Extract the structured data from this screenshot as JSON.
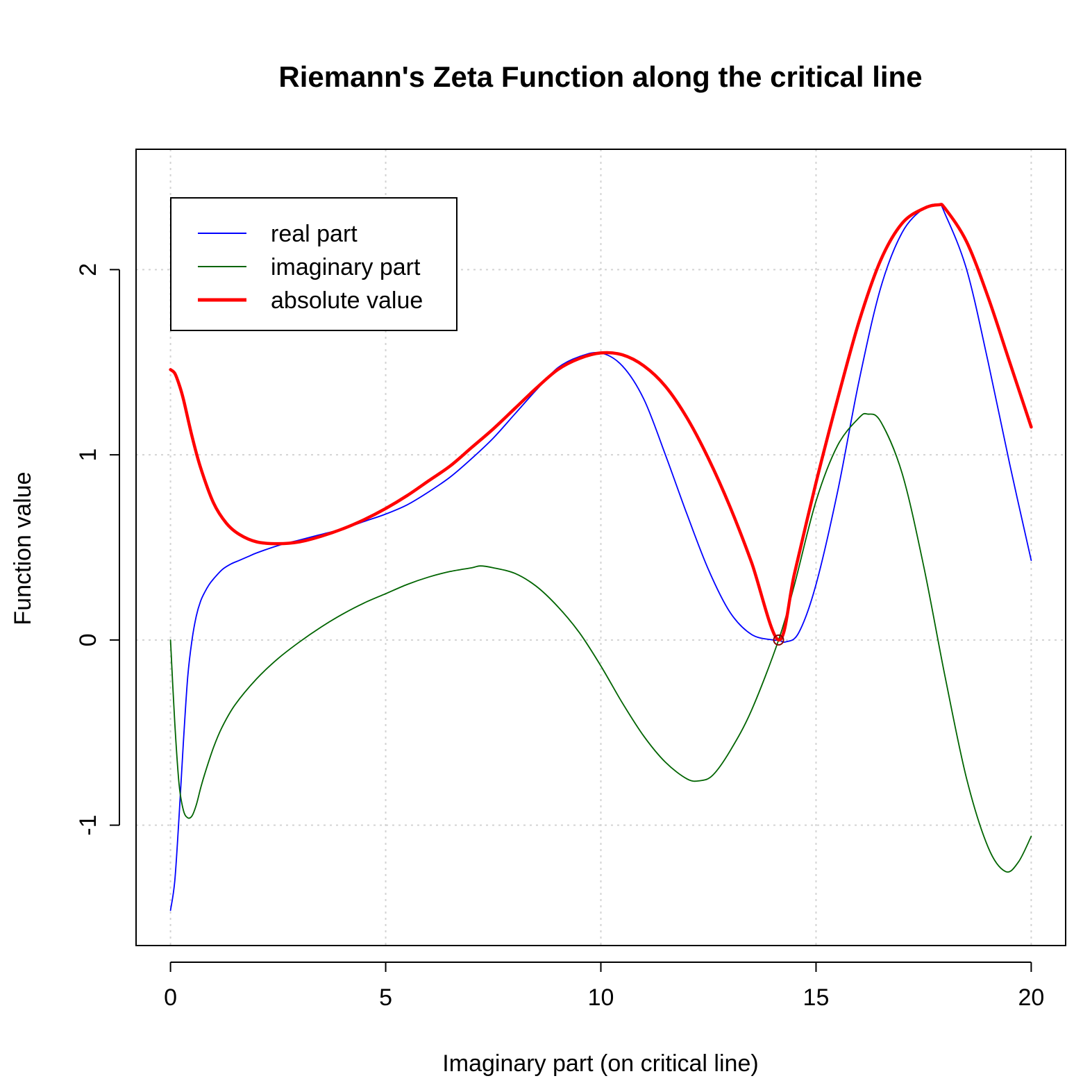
{
  "chart_data": {
    "type": "line",
    "title": "Riemann's Zeta Function along the critical line",
    "xlabel": "Imaginary part (on critical line)",
    "ylabel": "Function value",
    "xlim": [
      -0.8,
      20.8
    ],
    "ylim": [
      -1.65,
      2.65
    ],
    "xticks": [
      0,
      5,
      10,
      15,
      20
    ],
    "yticks": [
      -1,
      0,
      1,
      2
    ],
    "xtick_labels": [
      "0",
      "5",
      "10",
      "15",
      "20"
    ],
    "ytick_labels": [
      "-1",
      "0",
      "1",
      "2"
    ],
    "grid": true,
    "legend_position": "top-left",
    "legend": [
      "real part",
      "imaginary part",
      "absolute value"
    ],
    "marker_point": {
      "x": 14.13,
      "y": 0.0
    },
    "series": [
      {
        "name": "real part",
        "color": "#0000ff",
        "x": [
          0,
          0.1,
          0.2,
          0.3,
          0.4,
          0.5,
          0.6,
          0.7,
          0.8,
          0.9,
          1.0,
          1.2,
          1.4,
          1.6,
          1.8,
          2.0,
          2.5,
          3.0,
          3.5,
          4.0,
          4.5,
          5.0,
          5.5,
          6.0,
          6.5,
          7.0,
          7.5,
          8.0,
          8.5,
          9.0,
          9.5,
          10.0,
          10.5,
          11.0,
          11.5,
          12.0,
          12.5,
          13.0,
          13.5,
          14.0,
          14.13,
          14.3,
          14.6,
          15.0,
          15.5,
          16.0,
          16.5,
          17.0,
          17.5,
          17.85,
          18.0,
          18.5,
          19.0,
          19.5,
          20.0
        ],
        "y": [
          -1.46,
          -1.3,
          -0.95,
          -0.55,
          -0.2,
          0.0,
          0.13,
          0.21,
          0.26,
          0.3,
          0.33,
          0.38,
          0.41,
          0.43,
          0.45,
          0.47,
          0.51,
          0.54,
          0.57,
          0.6,
          0.64,
          0.68,
          0.73,
          0.8,
          0.88,
          0.98,
          1.09,
          1.22,
          1.35,
          1.47,
          1.53,
          1.55,
          1.48,
          1.3,
          1.0,
          0.68,
          0.38,
          0.15,
          0.03,
          0.0,
          0.0,
          -0.01,
          0.04,
          0.3,
          0.8,
          1.4,
          1.9,
          2.2,
          2.33,
          2.35,
          2.3,
          2.0,
          1.5,
          0.95,
          0.43
        ]
      },
      {
        "name": "imaginary part",
        "color": "#006400",
        "x": [
          0,
          0.1,
          0.2,
          0.3,
          0.4,
          0.5,
          0.6,
          0.7,
          0.8,
          1.0,
          1.2,
          1.5,
          2.0,
          2.5,
          3.0,
          3.5,
          4.0,
          4.5,
          5.0,
          5.5,
          6.0,
          6.5,
          7.0,
          7.2,
          7.5,
          8.0,
          8.5,
          9.0,
          9.5,
          10.0,
          10.5,
          11.0,
          11.5,
          12.0,
          12.3,
          12.6,
          13.0,
          13.5,
          14.13,
          14.5,
          15.0,
          15.5,
          16.0,
          16.2,
          16.5,
          17.0,
          17.5,
          18.0,
          18.5,
          19.0,
          19.4,
          19.7,
          20.0
        ],
        "y": [
          0.0,
          -0.45,
          -0.78,
          -0.92,
          -0.96,
          -0.95,
          -0.89,
          -0.8,
          -0.72,
          -0.58,
          -0.47,
          -0.35,
          -0.21,
          -0.1,
          -0.01,
          0.07,
          0.14,
          0.2,
          0.25,
          0.3,
          0.34,
          0.37,
          0.39,
          0.4,
          0.39,
          0.36,
          0.29,
          0.18,
          0.04,
          -0.14,
          -0.34,
          -0.52,
          -0.66,
          -0.75,
          -0.76,
          -0.73,
          -0.6,
          -0.38,
          0.0,
          0.3,
          0.75,
          1.05,
          1.2,
          1.22,
          1.18,
          0.9,
          0.4,
          -0.2,
          -0.75,
          -1.12,
          -1.25,
          -1.2,
          -1.06
        ]
      },
      {
        "name": "absolute value",
        "color": "#ff0000",
        "x": [
          0,
          0.1,
          0.2,
          0.3,
          0.5,
          0.7,
          1.0,
          1.3,
          1.6,
          2.0,
          2.5,
          3.0,
          3.5,
          4.0,
          4.5,
          5.0,
          5.5,
          6.0,
          6.5,
          7.0,
          7.5,
          8.0,
          8.5,
          9.0,
          9.5,
          10.0,
          10.5,
          11.0,
          11.5,
          12.0,
          12.5,
          13.0,
          13.5,
          14.13,
          14.5,
          15.0,
          15.5,
          16.0,
          16.5,
          17.0,
          17.5,
          17.85,
          18.0,
          18.5,
          19.0,
          19.5,
          20.0
        ],
        "y": [
          1.46,
          1.44,
          1.38,
          1.3,
          1.1,
          0.93,
          0.74,
          0.63,
          0.57,
          0.53,
          0.52,
          0.53,
          0.56,
          0.6,
          0.65,
          0.71,
          0.78,
          0.86,
          0.94,
          1.04,
          1.14,
          1.25,
          1.36,
          1.46,
          1.52,
          1.55,
          1.54,
          1.48,
          1.37,
          1.2,
          0.98,
          0.72,
          0.42,
          0.0,
          0.36,
          0.85,
          1.3,
          1.72,
          2.05,
          2.25,
          2.33,
          2.35,
          2.33,
          2.15,
          1.85,
          1.5,
          1.15
        ]
      }
    ]
  }
}
